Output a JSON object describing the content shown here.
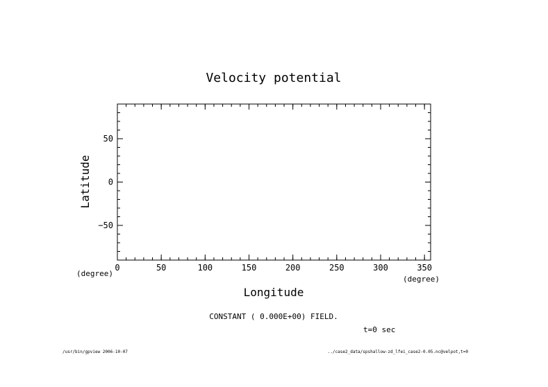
{
  "chart_data": {
    "type": "line",
    "title": "Velocity potential",
    "xlabel": "Longitude",
    "ylabel": "Latitude",
    "x_unit": "(degree)",
    "y_unit": "(degree)",
    "xlim": [
      0,
      357
    ],
    "ylim": [
      -90,
      90
    ],
    "x_ticks": [
      0,
      50,
      100,
      150,
      200,
      250,
      300,
      350
    ],
    "y_ticks": [
      50,
      0,
      -50
    ],
    "x_tick_labels": [
      "0",
      "50",
      "100",
      "150",
      "200",
      "250",
      "300",
      "350"
    ],
    "y_tick_labels": [
      "50",
      "0",
      "−50"
    ],
    "x_minor_step": 10,
    "y_minor_step": 10,
    "grid": false,
    "series": [],
    "annotation": "CONSTANT ( 0.000E+00) FIELD.",
    "time_label": "t=0 sec"
  },
  "footer": {
    "left": "/usr/bin/gpview  2006-10-07",
    "right": "../case2_data/spshallow-zd_lfei_case2-0.05.nc@velpot,t=0"
  }
}
